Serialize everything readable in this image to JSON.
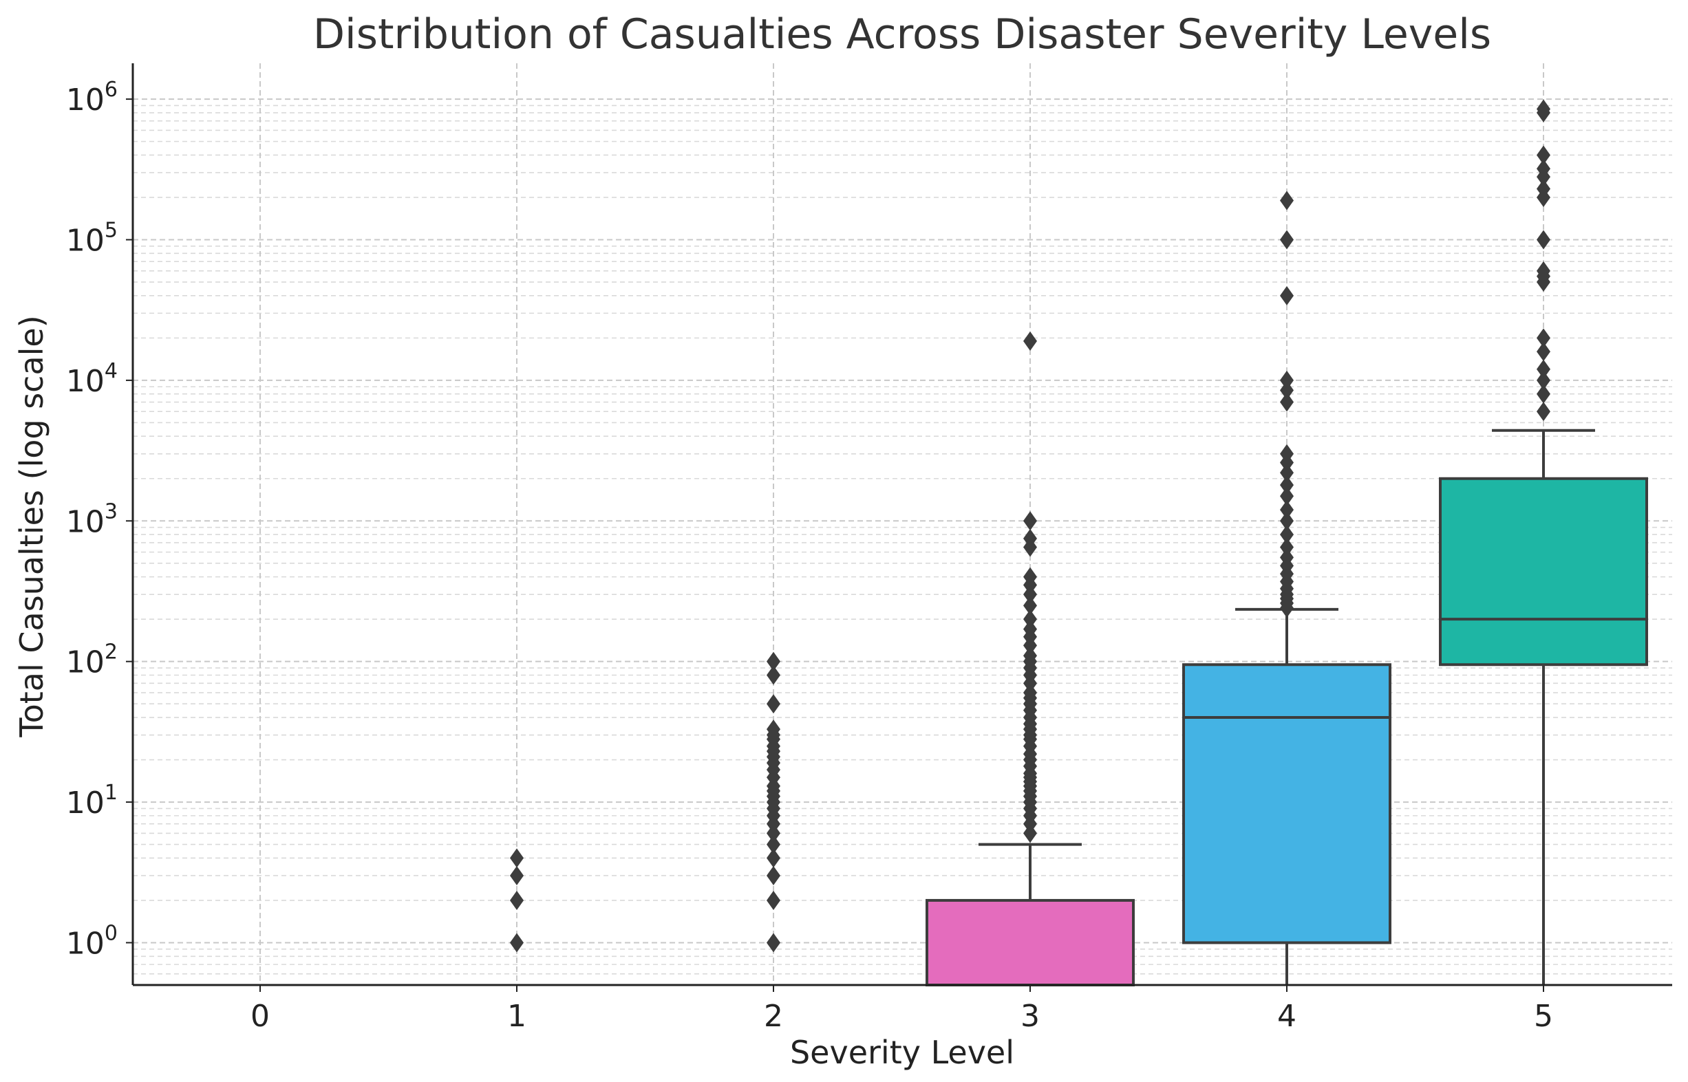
{
  "chart_data": {
    "type": "boxplot",
    "title": "Distribution of Casualties Across Disaster Severity Levels",
    "xlabel": "Severity Level",
    "ylabel": "Total Casualties (log scale)",
    "yscale": "log",
    "ylim": [
      0.5,
      1700000
    ],
    "grid": true,
    "categories": [
      "0",
      "1",
      "2",
      "3",
      "4",
      "5"
    ],
    "y_ticks": [
      {
        "value": 1,
        "base": "10",
        "exp": "0"
      },
      {
        "value": 10,
        "base": "10",
        "exp": "1"
      },
      {
        "value": 100,
        "base": "10",
        "exp": "2"
      },
      {
        "value": 1000,
        "base": "10",
        "exp": "3"
      },
      {
        "value": 10000,
        "base": "10",
        "exp": "4"
      },
      {
        "value": 100000,
        "base": "10",
        "exp": "5"
      },
      {
        "value": 1000000,
        "base": "10",
        "exp": "6"
      }
    ],
    "boxes": [
      {
        "category": "0",
        "color": null,
        "outliers": []
      },
      {
        "category": "1",
        "color": null,
        "outliers": [
          1,
          2,
          3,
          4
        ]
      },
      {
        "category": "2",
        "color": null,
        "outliers": [
          1,
          2,
          3,
          4,
          5,
          6,
          7,
          8,
          9,
          10,
          11,
          12,
          13,
          15,
          17,
          19,
          21,
          23,
          25,
          28,
          30,
          33,
          50,
          80,
          100
        ]
      },
      {
        "category": "3",
        "color": "#e46cbd",
        "whisker_low": 0.5,
        "q1": 0.5,
        "median": 0.5,
        "q3": 2,
        "whisker_high": 5,
        "outliers": [
          6,
          7,
          8,
          9,
          10,
          11,
          12,
          13,
          14,
          15,
          16,
          18,
          20,
          22,
          25,
          28,
          30,
          33,
          36,
          40,
          45,
          50,
          55,
          60,
          70,
          80,
          90,
          100,
          110,
          130,
          150,
          170,
          200,
          250,
          300,
          350,
          400,
          650,
          750,
          1000,
          19000
        ]
      },
      {
        "category": "4",
        "color": "#44b3e4",
        "whisker_low": 0.5,
        "q1": 1,
        "median": 40,
        "q3": 95,
        "whisker_high": 235,
        "outliers": [
          240,
          260,
          280,
          300,
          330,
          370,
          420,
          480,
          550,
          650,
          800,
          1000,
          1200,
          1500,
          1800,
          2200,
          2600,
          3000,
          7000,
          8500,
          10000,
          40000,
          100000,
          190000
        ]
      },
      {
        "category": "5",
        "color": "#1eb6a4",
        "whisker_low": 0.5,
        "q1": 95,
        "median": 200,
        "q3": 2000,
        "whisker_high": 4400,
        "outliers": [
          6000,
          8000,
          10000,
          12000,
          16000,
          20000,
          50000,
          55000,
          60000,
          100000,
          200000,
          230000,
          280000,
          320000,
          400000,
          800000,
          850000
        ]
      }
    ]
  }
}
